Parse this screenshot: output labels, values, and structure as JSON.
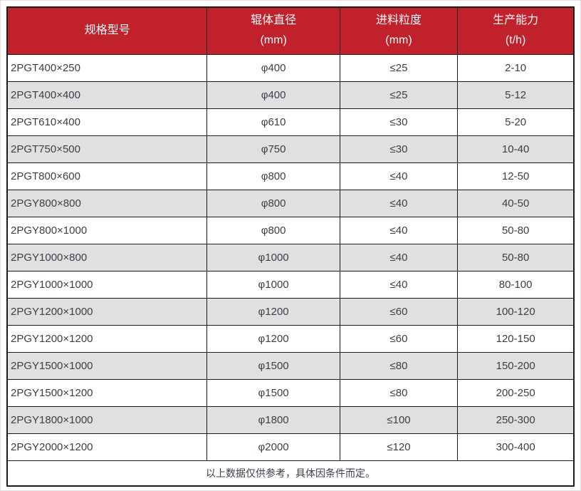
{
  "table": {
    "headers": [
      {
        "line1": "规格型号",
        "line2": ""
      },
      {
        "line1": "辊体直径",
        "line2": "(mm)"
      },
      {
        "line1": "进料粒度",
        "line2": "(mm)"
      },
      {
        "line1": "生产能力",
        "line2": "(t/h)"
      }
    ],
    "columns_semantic": [
      "model",
      "roller-diameter-mm",
      "feed-size-mm",
      "capacity-tph"
    ],
    "rows": [
      [
        "2PGT400×250",
        "φ400",
        "≤25",
        "2-10"
      ],
      [
        "2PGT400×400",
        "φ400",
        "≤25",
        "5-12"
      ],
      [
        "2PGT610×400",
        "φ610",
        "≤30",
        "5-20"
      ],
      [
        "2PGT750×500",
        "φ750",
        "≤30",
        "10-40"
      ],
      [
        "2PGT800×600",
        "φ800",
        "≤40",
        "12-50"
      ],
      [
        "2PGY800×800",
        "φ800",
        "≤40",
        "40-50"
      ],
      [
        "2PGY800×1000",
        "φ800",
        "≤40",
        "50-80"
      ],
      [
        "2PGY1000×800",
        "φ1000",
        "≤40",
        "50-80"
      ],
      [
        "2PGY1000×1000",
        "φ1000",
        "≤40",
        "80-100"
      ],
      [
        "2PGY1200×1000",
        "φ1200",
        "≤60",
        "100-120"
      ],
      [
        "2PGY1200×1200",
        "φ1200",
        "≤60",
        "120-150"
      ],
      [
        "2PGY1500×1000",
        "φ1500",
        "≤80",
        "150-200"
      ],
      [
        "2PGY1500×1200",
        "φ1500",
        "≤80",
        "200-250"
      ],
      [
        "2PGY1800×1000",
        "φ1800",
        "≤100",
        "250-300"
      ],
      [
        "2PGY2000×1200",
        "φ2000",
        "≤120",
        "300-400"
      ]
    ],
    "footer_note": "以上数据仅供参考，具体因条件而定。"
  },
  "colors": {
    "header_bg": "#c1212a",
    "header_text": "#ffffff",
    "row_alt_bg": "#e0e0e0",
    "border": "#1b1b1b",
    "text": "#3a4048"
  }
}
